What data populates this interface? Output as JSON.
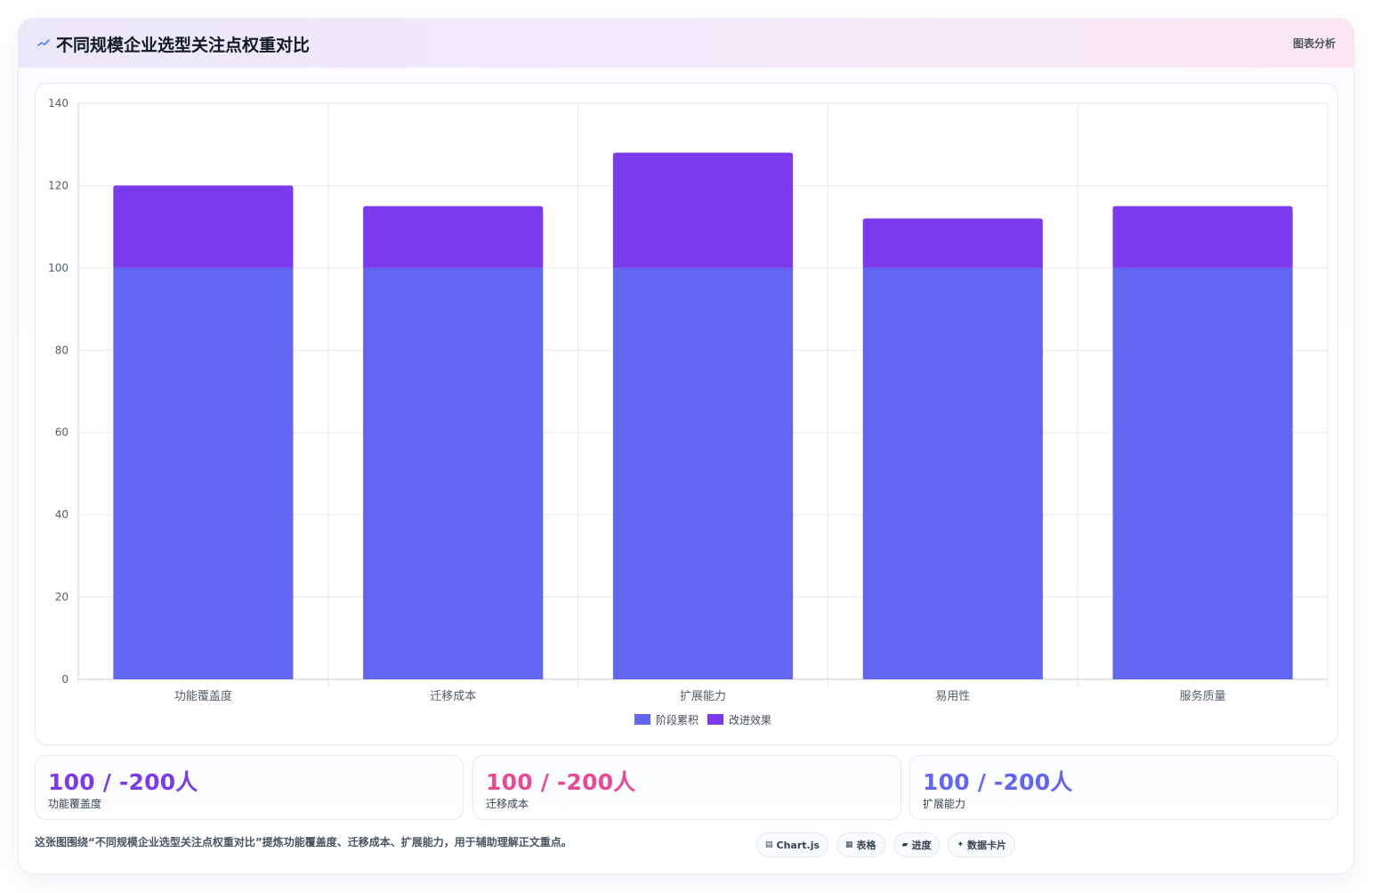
{
  "header": {
    "title": "不同规模企业选型关注点权重对比",
    "tag": "图表分析",
    "icon": "sparkline-icon"
  },
  "chart_data": {
    "type": "bar",
    "stacked": true,
    "categories": [
      "功能覆盖度",
      "迁移成本",
      "扩展能力",
      "易用性",
      "服务质量"
    ],
    "series": [
      {
        "name": "阶段累积",
        "values": [
          100,
          100,
          100,
          100,
          100
        ],
        "color": "#6366f1"
      },
      {
        "name": "改进效果",
        "values": [
          20,
          15,
          28,
          12,
          15
        ],
        "color": "#7c3aed"
      }
    ],
    "ylim": [
      0,
      140
    ],
    "yticks": [
      0,
      20,
      40,
      60,
      80,
      100,
      120,
      140
    ],
    "grid": true,
    "legend": "bottom"
  },
  "stats": [
    {
      "value": "100 / -200人",
      "label": "功能覆盖度",
      "color": "#7c3aed"
    },
    {
      "value": "100 / -200人",
      "label": "迁移成本",
      "color": "#ec4899"
    },
    {
      "value": "100 / -200人",
      "label": "扩展能力",
      "color": "#6366f1"
    }
  ],
  "caption": "这张图围绕“不同规模企业选型关注点权重对比”提炼功能覆盖度、迁移成本、扩展能力，用于辅助理解正文重点。",
  "chips": [
    {
      "icon": "▤",
      "label": "Chart.js"
    },
    {
      "icon": "▦",
      "label": "表格"
    },
    {
      "icon": "▰",
      "label": "进度"
    },
    {
      "icon": "✦",
      "label": "数据卡片"
    }
  ]
}
